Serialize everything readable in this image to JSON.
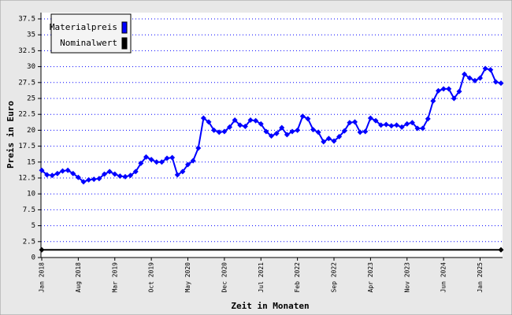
{
  "chart_data": {
    "type": "line",
    "x_label": "Zeit in Monaten",
    "y_label": "Preis in Euro",
    "ylim": [
      0,
      37.5
    ],
    "yticks": [
      0,
      2.5,
      5,
      7.5,
      10,
      12.5,
      15,
      17.5,
      20,
      22.5,
      25,
      27.5,
      30,
      32.5,
      35,
      37.5
    ],
    "grid": true,
    "legend": "top-left",
    "categories": [
      "Jan 2018",
      null,
      null,
      null,
      null,
      null,
      null,
      "Aug 2018",
      null,
      null,
      null,
      null,
      null,
      null,
      "Mar 2019",
      null,
      null,
      null,
      null,
      null,
      null,
      "Oct 2019",
      null,
      null,
      null,
      null,
      null,
      null,
      "May 2020",
      null,
      null,
      null,
      null,
      null,
      null,
      "Dec 2020",
      null,
      null,
      null,
      null,
      null,
      null,
      "Jul 2021",
      null,
      null,
      null,
      null,
      null,
      null,
      "Feb 2022",
      null,
      null,
      null,
      null,
      null,
      null,
      "Sep 2022",
      null,
      null,
      null,
      null,
      null,
      null,
      "Apr 2023",
      null,
      null,
      null,
      null,
      null,
      null,
      "Nov 2023",
      null,
      null,
      null,
      null,
      null,
      null,
      "Jun 2024",
      null,
      null,
      null,
      null,
      null,
      null,
      "Jan 2025",
      null,
      null,
      null,
      null
    ],
    "series": [
      {
        "name": "Materialpreis",
        "color": "#0000ff",
        "markers": "all",
        "values": [
          13.7,
          13.0,
          12.9,
          13.2,
          13.6,
          13.7,
          13.2,
          12.6,
          11.9,
          12.2,
          12.3,
          12.4,
          13.1,
          13.5,
          13.1,
          12.8,
          12.7,
          12.9,
          13.5,
          14.8,
          15.8,
          15.4,
          15.0,
          15.0,
          15.6,
          15.7,
          13.0,
          13.5,
          14.6,
          15.2,
          17.2,
          21.9,
          21.3,
          20.0,
          19.7,
          19.8,
          20.5,
          21.6,
          20.8,
          20.6,
          21.6,
          21.5,
          21.0,
          19.8,
          19.1,
          19.5,
          20.4,
          19.3,
          19.8,
          20.0,
          22.2,
          21.8,
          20.1,
          19.7,
          18.2,
          18.7,
          18.3,
          19.0,
          19.9,
          21.2,
          21.3,
          19.7,
          19.8,
          21.9,
          21.5,
          20.8,
          20.9,
          20.7,
          20.8,
          20.5,
          21.0,
          21.2,
          20.3,
          20.3,
          21.8,
          24.6,
          26.2,
          26.5,
          26.5,
          25.0,
          26.1,
          28.8,
          28.2,
          27.8,
          28.2,
          29.7,
          29.5,
          27.6,
          27.4
        ]
      },
      {
        "name": "Nominalwert",
        "color": "#000000",
        "markers": "ends",
        "values": [
          1.2,
          1.2,
          1.2,
          1.2,
          1.2,
          1.2,
          1.2,
          1.2,
          1.2,
          1.2,
          1.2,
          1.2,
          1.2,
          1.2,
          1.2,
          1.2,
          1.2,
          1.2,
          1.2,
          1.2,
          1.2,
          1.2,
          1.2,
          1.2,
          1.2,
          1.2,
          1.2,
          1.2,
          1.2,
          1.2,
          1.2,
          1.2,
          1.2,
          1.2,
          1.2,
          1.2,
          1.2,
          1.2,
          1.2,
          1.2,
          1.2,
          1.2,
          1.2,
          1.2,
          1.2,
          1.2,
          1.2,
          1.2,
          1.2,
          1.2,
          1.2,
          1.2,
          1.2,
          1.2,
          1.2,
          1.2,
          1.2,
          1.2,
          1.2,
          1.2,
          1.2,
          1.2,
          1.2,
          1.2,
          1.2,
          1.2,
          1.2,
          1.2,
          1.2,
          1.2,
          1.2,
          1.2,
          1.2,
          1.2,
          1.2,
          1.2,
          1.2,
          1.2,
          1.2,
          1.2,
          1.2,
          1.2,
          1.2,
          1.2,
          1.2,
          1.2,
          1.2,
          1.2,
          1.2
        ]
      }
    ]
  }
}
